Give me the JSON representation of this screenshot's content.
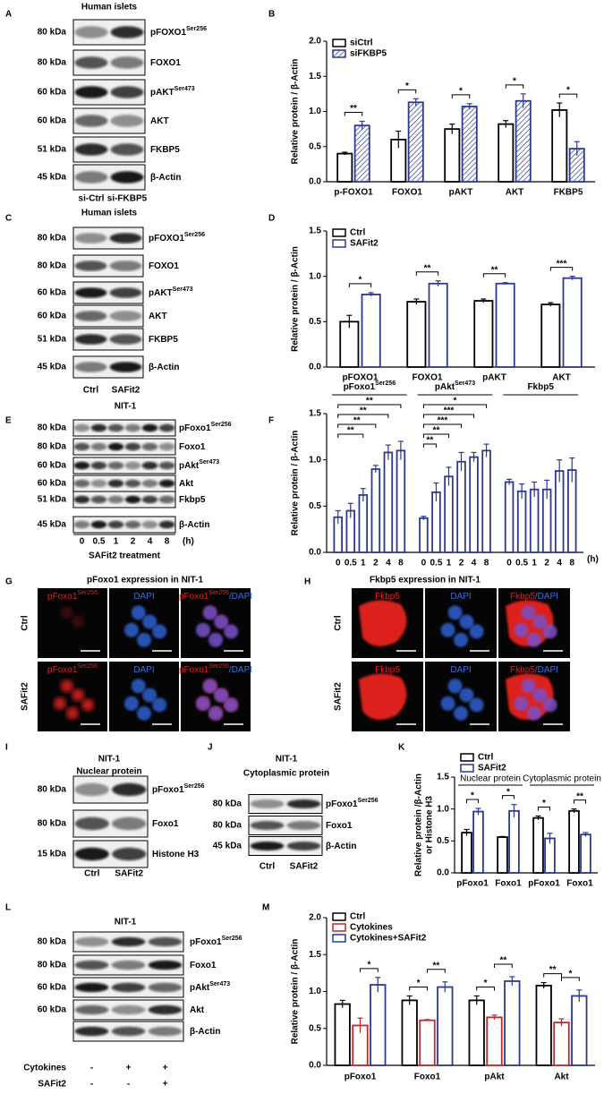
{
  "blots": [
    {
      "panel": "A",
      "title": [
        "Human islets"
      ],
      "rows": [
        {
          "kda": "80 kDa",
          "protein": "pFOXO1",
          "sup": "Ser256"
        },
        {
          "kda": "80 kDa",
          "protein": "FOXO1"
        },
        {
          "kda": "60 kDa",
          "protein": "pAKT",
          "sup": "Ser473"
        },
        {
          "kda": "60 kDa",
          "protein": "AKT"
        },
        {
          "kda": "51 kDa",
          "protein": "FKBP5"
        },
        {
          "kda": "45 kDa",
          "protein": "β-Actin"
        }
      ],
      "lanes": [
        "si-Ctrl",
        "si-FKBP5"
      ]
    },
    {
      "panel": "C",
      "title": [
        "Human islets"
      ],
      "rows": [
        {
          "kda": "80 kDa",
          "protein": "pFOXO1",
          "sup": "Ser256"
        },
        {
          "kda": "80 kDa",
          "protein": "FOXO1"
        },
        {
          "kda": "60 kDa",
          "protein": "pAKT",
          "sup": "Ser473"
        },
        {
          "kda": "60 kDa",
          "protein": "AKT"
        },
        {
          "kda": "51 kDa",
          "protein": "FKBP5"
        },
        {
          "kda": "45 kDa",
          "protein": "β-Actin"
        }
      ],
      "lanes": [
        "Ctrl",
        "SAFit2"
      ]
    },
    {
      "panel": "E",
      "title": [
        "NIT-1"
      ],
      "rows": [
        {
          "kda": "80 kDa",
          "protein": "pFoxo1",
          "sup": "Ser256"
        },
        {
          "kda": "80 kDa",
          "protein": "Foxo1"
        },
        {
          "kda": "60 kDa",
          "protein": "pAkt",
          "sup": "Ser473"
        },
        {
          "kda": "60 kDa",
          "protein": "Akt"
        },
        {
          "kda": "51 kDa",
          "protein": "Fkbp5"
        },
        {
          "kda": "45 kDa",
          "protein": "β-Actin"
        }
      ],
      "lanes": [
        "0",
        "0.5",
        "1",
        "2",
        "4",
        "8"
      ],
      "unit": "(h)",
      "footer": "SAFit2 treatment"
    },
    {
      "panel": "I",
      "title": [
        "NIT-1",
        "Nuclear protein"
      ],
      "rows": [
        {
          "kda": "80 kDa",
          "protein": "pFoxo1",
          "sup": "Ser256"
        },
        {
          "kda": "80 kDa",
          "protein": "Foxo1"
        },
        {
          "kda": "15 kDa",
          "protein": "Histone H3"
        }
      ],
      "lanes": [
        "Ctrl",
        "SAFit2"
      ]
    },
    {
      "panel": "J",
      "title": [
        "NIT-1",
        "Cytoplasmic protein"
      ],
      "rows": [
        {
          "kda": "80 kDa",
          "protein": "pFoxo1",
          "sup": "Ser256"
        },
        {
          "kda": "80 kDa",
          "protein": "Foxo1"
        },
        {
          "kda": "45 kDa",
          "protein": "β-Actin"
        }
      ],
      "lanes": [
        "Ctrl",
        "SAFit2"
      ]
    },
    {
      "panel": "L",
      "title": [
        "NIT-1"
      ],
      "rows": [
        {
          "kda": "80 kDa",
          "protein": "pFoxo1",
          "sup": "Ser256"
        },
        {
          "kda": "80 kDa",
          "protein": "Foxo1"
        },
        {
          "kda": "60 kDa",
          "protein": "pAkt",
          "sup": "Ser473"
        },
        {
          "kda": "60 kDa",
          "protein": "Akt"
        },
        {
          "protein": "β-Actin"
        }
      ],
      "treatments": [
        {
          "label": "Cytokines",
          "marks": [
            "-",
            "+",
            "+"
          ]
        },
        {
          "label": "SAFit2",
          "marks": [
            "-",
            "-",
            "+"
          ]
        }
      ]
    }
  ],
  "micrographs": [
    {
      "panel": "G",
      "title": "pFoxo1 expression in NIT-1",
      "rows": [
        "Ctrl",
        "SAFit2"
      ],
      "columns": [
        {
          "label": "pFoxo1",
          "sup": "Ser256"
        },
        {
          "label": "DAPI"
        },
        {
          "label": "pFoxo1",
          "sup": "Ser256",
          "suffix": "/DAPI"
        }
      ]
    },
    {
      "panel": "H",
      "title": "Fkbp5 expression in NIT-1",
      "rows": [
        "Ctrl",
        "SAFit2"
      ],
      "columns": [
        {
          "label": "Fkbp5"
        },
        {
          "label": "DAPI"
        },
        {
          "label": "Fkbp5",
          "suffix": "/DAPI"
        }
      ]
    }
  ],
  "chart_data": [
    {
      "type": "bar",
      "panel": "B",
      "ylabel": "Relative protein / β-Actin",
      "categories": [
        "p-FOXO1",
        "FOXO1",
        "pAKT",
        "AKT",
        "FKBP5"
      ],
      "series": [
        {
          "name": "siCtrl",
          "color": "#000000",
          "values": [
            0.4,
            0.6,
            0.75,
            0.82,
            1.02
          ],
          "errors": [
            0.02,
            0.12,
            0.07,
            0.05,
            0.1
          ]
        },
        {
          "name": "siFKBP5",
          "color": "#2b3990",
          "pattern": "hatch",
          "values": [
            0.8,
            1.13,
            1.07,
            1.15,
            0.47
          ],
          "errors": [
            0.06,
            0.05,
            0.04,
            0.1,
            0.1
          ]
        }
      ],
      "ylim": [
        0,
        2
      ],
      "yticks": [
        {
          "value": 0,
          "label": "0.0"
        },
        0.5,
        {
          "value": 1,
          "label": "1.0"
        },
        1.5,
        {
          "value": 2,
          "label": "2.0"
        }
      ],
      "significance": [
        "**",
        "*",
        "*",
        "*",
        "*"
      ]
    },
    {
      "type": "bar",
      "panel": "D",
      "ylabel": "Relative protein / β-Actin",
      "categories": [
        "pFOXO1",
        "FOXO1",
        "pAKT",
        "AKT"
      ],
      "series": [
        {
          "name": "Ctrl",
          "color": "#000000",
          "values": [
            0.5,
            0.72,
            0.73,
            0.69
          ],
          "errors": [
            0.07,
            0.03,
            0.02,
            0.02
          ]
        },
        {
          "name": "SAFit2",
          "color": "#2b3990",
          "values": [
            0.8,
            0.92,
            0.92,
            0.98
          ],
          "errors": [
            0.02,
            0.03,
            0.01,
            0.02
          ]
        }
      ],
      "ylim": [
        0,
        1.5
      ],
      "yticks": [
        {
          "value": 0,
          "label": "0.0"
        },
        0.5,
        {
          "value": 1,
          "label": "1.0"
        },
        1.5
      ],
      "significance": [
        "*",
        "**",
        "**",
        "***"
      ]
    },
    {
      "type": "grouped-time",
      "panel": "F",
      "ylabel": "Relative protein / β-Actin",
      "categories": [
        "0",
        "0.5",
        "1",
        "2",
        "4",
        "8"
      ],
      "unit": "(h)",
      "color": "#2b3990",
      "groups": [
        {
          "label": "pFoxo1",
          "sup": "Ser256",
          "values": [
            0.38,
            0.45,
            0.62,
            0.9,
            1.08,
            1.1
          ],
          "errors": [
            0.07,
            0.08,
            0.07,
            0.04,
            0.08,
            0.1
          ],
          "significance": [
            "**",
            "**",
            "**",
            "**"
          ]
        },
        {
          "label": "pAkt",
          "sup": "Ser473",
          "values": [
            0.37,
            0.65,
            0.82,
            0.98,
            1.03,
            1.1
          ],
          "errors": [
            0.02,
            0.1,
            0.1,
            0.1,
            0.05,
            0.07
          ],
          "significance": [
            "*",
            "***",
            "***",
            "**",
            "**"
          ]
        },
        {
          "label": "Fkbp5",
          "values": [
            0.76,
            0.66,
            0.68,
            0.68,
            0.88,
            0.89
          ],
          "errors": [
            0.03,
            0.08,
            0.08,
            0.1,
            0.12,
            0.13
          ],
          "significance": []
        }
      ],
      "ylim": [
        0,
        1.5
      ],
      "yticks": [
        {
          "value": 0,
          "label": "0.0"
        },
        0.5,
        {
          "value": 1,
          "label": "1.0"
        },
        1.5
      ]
    },
    {
      "type": "bar",
      "panel": "K",
      "ylabel": [
        "Relative protein /β-Actin",
        "or Histone H3"
      ],
      "categories": [
        "pFoxo1",
        "Foxo1",
        "pFoxo1",
        "Foxo1"
      ],
      "subgroups": [
        "Nuclear protein",
        "Cytoplasmic  protein"
      ],
      "series": [
        {
          "name": "Ctrl",
          "color": "#000000",
          "values": [
            0.63,
            0.56,
            0.86,
            0.97
          ],
          "errors": [
            0.05,
            0.01,
            0.03,
            0.03
          ]
        },
        {
          "name": "SAFit2",
          "color": "#2b3990",
          "values": [
            0.96,
            0.97,
            0.54,
            0.6
          ],
          "errors": [
            0.05,
            0.1,
            0.08,
            0.03
          ]
        }
      ],
      "ylim": [
        0,
        1.5
      ],
      "yticks": [
        {
          "value": 0,
          "label": "0.0"
        },
        0.5,
        {
          "value": 1,
          "label": "1.0"
        },
        1.5
      ],
      "significance": [
        "*",
        "*",
        "*",
        "**"
      ]
    },
    {
      "type": "bar",
      "panel": "M",
      "ylabel": "Relative protein / β-Actin",
      "categories": [
        "pFoxo1",
        "Foxo1",
        "pAkt",
        "Akt"
      ],
      "series": [
        {
          "name": "Ctrl",
          "color": "#000000",
          "values": [
            0.83,
            0.88,
            0.88,
            1.08
          ],
          "errors": [
            0.05,
            0.06,
            0.06,
            0.04
          ]
        },
        {
          "name": "Cytokines",
          "color": "#c1272d",
          "values": [
            0.54,
            0.61,
            0.65,
            0.58
          ],
          "errors": [
            0.1,
            0.01,
            0.03,
            0.05
          ]
        },
        {
          "name": "Cytokines+SAFit2",
          "color": "#2b3990",
          "values": [
            1.09,
            1.06,
            1.14,
            0.94
          ],
          "errors": [
            0.1,
            0.07,
            0.06,
            0.08
          ]
        }
      ],
      "ylim": [
        0,
        2
      ],
      "yticks": [
        {
          "value": 0,
          "label": "0.0"
        },
        0.5,
        {
          "value": 1,
          "label": "1.0"
        },
        1.5,
        {
          "value": 2,
          "label": "2.0"
        }
      ],
      "significance": [
        [
          "*"
        ],
        [
          "*",
          "**"
        ],
        [
          "*",
          "**"
        ],
        [
          "**",
          "*"
        ]
      ]
    }
  ]
}
